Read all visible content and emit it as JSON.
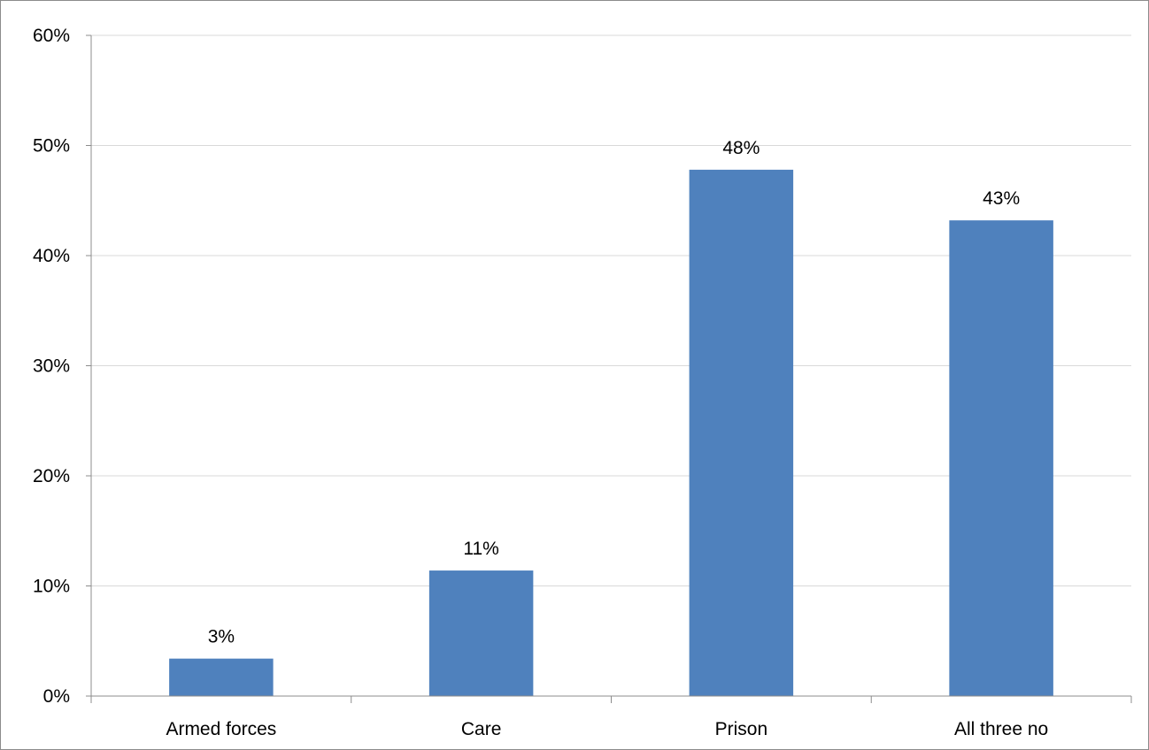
{
  "chart_data": {
    "type": "bar",
    "categories": [
      "Armed forces",
      "Care",
      "Prison",
      "All three no"
    ],
    "values": [
      3.4,
      11.4,
      47.8,
      43.2
    ],
    "data_labels": [
      "3%",
      "11%",
      "48%",
      "43%"
    ],
    "ylim": [
      0,
      60
    ],
    "yticks": [
      0,
      10,
      20,
      30,
      40,
      50,
      60
    ],
    "ytick_labels": [
      "0%",
      "10%",
      "20%",
      "30%",
      "40%",
      "50%",
      "60%"
    ],
    "grid": true,
    "bar_color": "#4f81bd",
    "grid_color": "#d9d9d9",
    "axis_color": "#8c8c8c",
    "title": "",
    "xlabel": "",
    "ylabel": ""
  }
}
